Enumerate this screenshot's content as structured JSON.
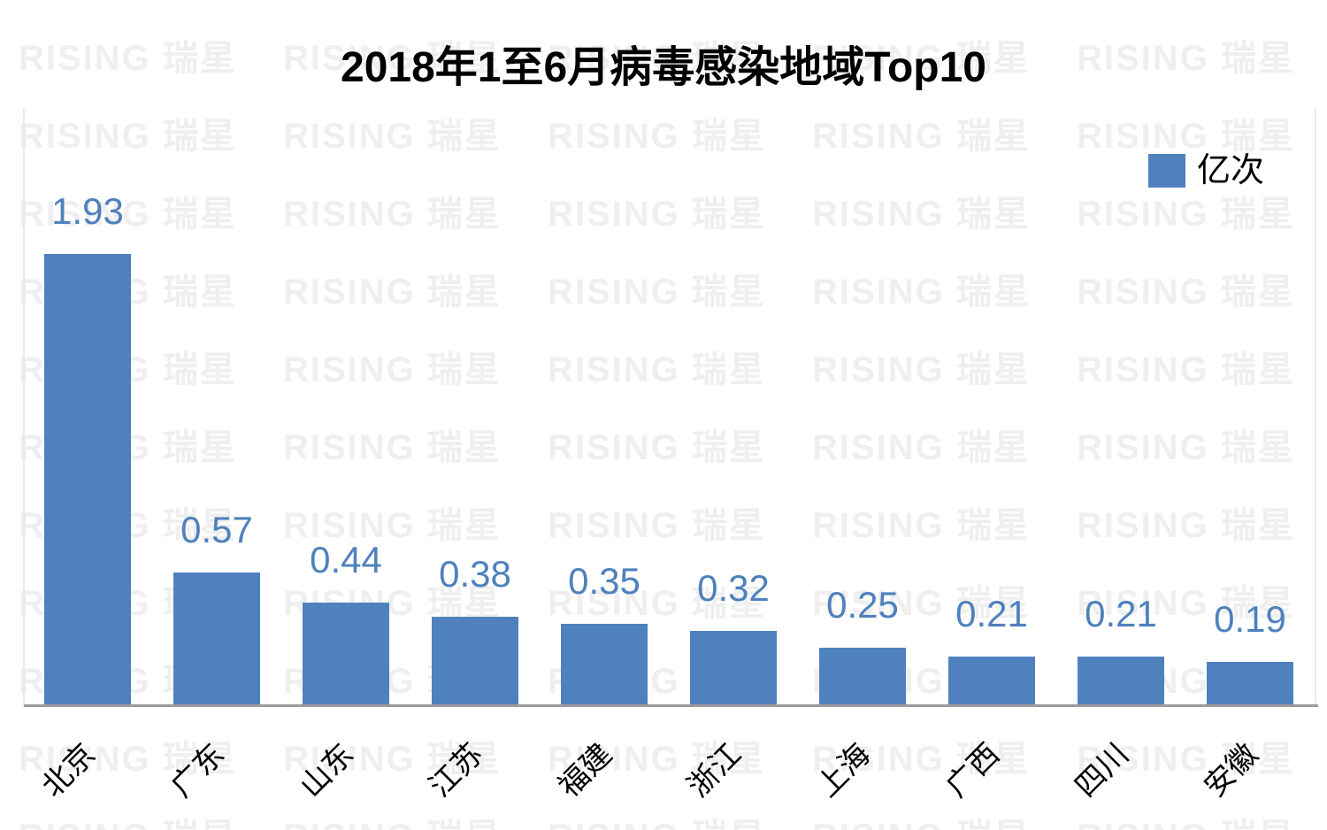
{
  "title": "2018年1至6月病毒感染地域Top10",
  "legend": {
    "label": "亿次",
    "swatch_color": "#4E81BD"
  },
  "watermark": {
    "text": "RISING 瑞星",
    "color": "#efefef"
  },
  "colors": {
    "bar": "#4E81BD",
    "value_label": "#4E81BD",
    "axis_line": "#9b9b9b",
    "plot_border": "#e9e9e9",
    "title_text": "#000000",
    "category_label": "#000000"
  },
  "chart_data": {
    "type": "bar",
    "title": "2018年1至6月病毒感染地域Top10",
    "categories": [
      "北京",
      "广东",
      "山东",
      "江苏",
      "福建",
      "浙江",
      "上海",
      "广西",
      "四川",
      "安徽"
    ],
    "series": [
      {
        "name": "亿次",
        "values": [
          1.93,
          0.57,
          0.44,
          0.38,
          0.35,
          0.32,
          0.25,
          0.21,
          0.21,
          0.19
        ],
        "data_labels": [
          "1.93",
          "0.57",
          "0.44",
          "0.38",
          "0.35",
          "0.32",
          "0.25",
          "0.21",
          "0.21",
          "0.19"
        ]
      }
    ],
    "xlabel": "",
    "ylabel": "",
    "ylim": [
      0,
      2.0
    ],
    "grid": false,
    "y_axis_visible": false,
    "legend_position": "top-right"
  }
}
